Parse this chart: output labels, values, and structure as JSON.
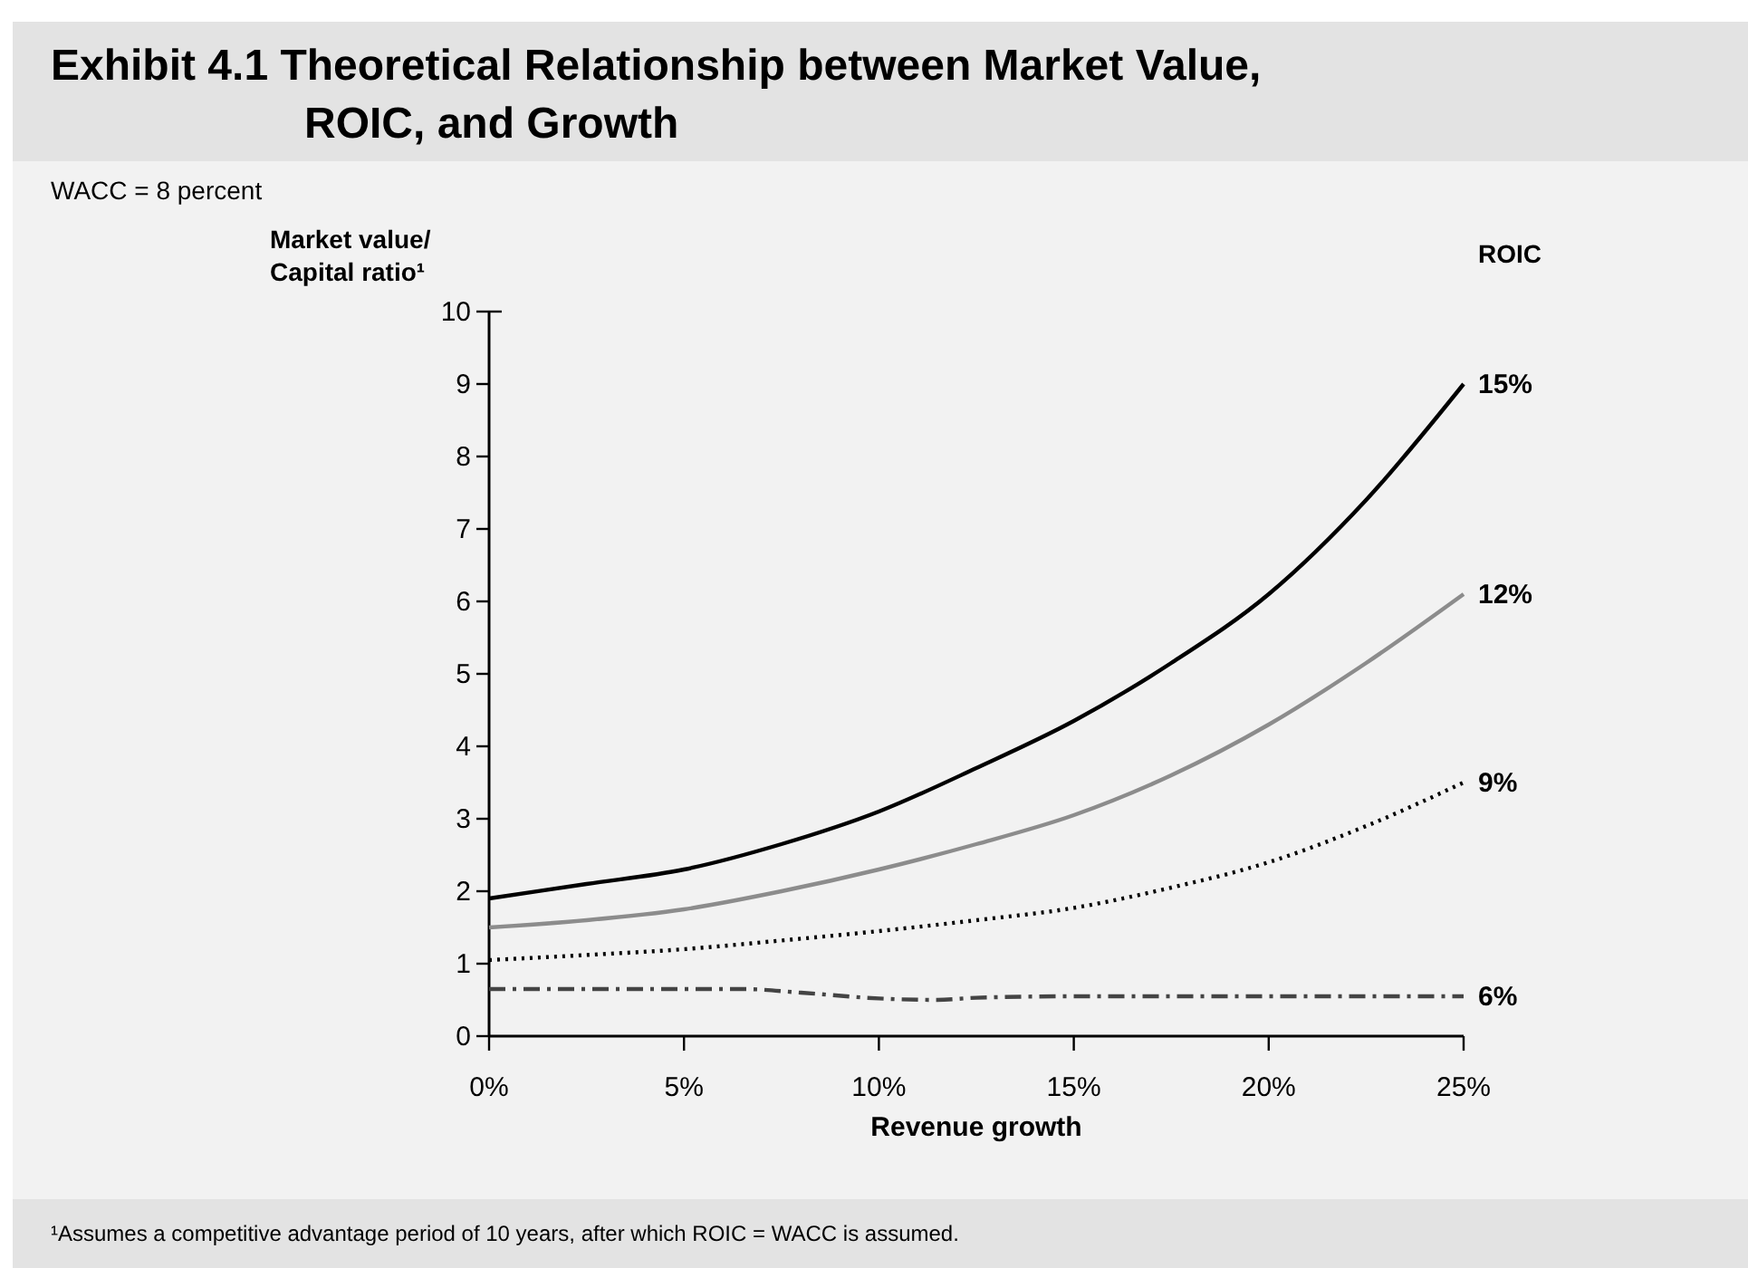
{
  "chart_data": {
    "type": "line",
    "title": "Exhibit 4.1 Theoretical Relationship between Market Value, ROIC, and Growth",
    "subtitle": "WACC = 8 percent",
    "xlabel": "Revenue growth",
    "ylabel": "Market value/ Capital ratio¹",
    "legend_title": "ROIC",
    "annotations": [
      "¹Assumes a competitive advantage period of 10 years, after which ROIC = WACC is assumed."
    ],
    "xlim": [
      0,
      25
    ],
    "xticks": [
      {
        "value": 0,
        "label": "0%"
      },
      {
        "value": 5,
        "label": "5%"
      },
      {
        "value": 10,
        "label": "10%"
      },
      {
        "value": 15,
        "label": "15%"
      },
      {
        "value": 20,
        "label": "20%"
      },
      {
        "value": 25,
        "label": "25%"
      }
    ],
    "ylim": [
      0,
      10
    ],
    "yticks": [
      0,
      1,
      2,
      3,
      4,
      5,
      6,
      7,
      8,
      9,
      10
    ],
    "grid": false,
    "series": [
      {
        "name": "15%",
        "color": "#000000",
        "line_style": "solid",
        "x": [
          0,
          2.5,
          5,
          7.5,
          10,
          12.5,
          15,
          17.5,
          20,
          22.5,
          25
        ],
        "values": [
          1.9,
          2.1,
          2.3,
          2.65,
          3.1,
          3.7,
          4.35,
          5.15,
          6.1,
          7.4,
          9.0
        ]
      },
      {
        "name": "12%",
        "color": "#8c8c8c",
        "line_style": "solid",
        "x": [
          0,
          2.5,
          5,
          7.5,
          10,
          12.5,
          15,
          17.5,
          20,
          22.5,
          25
        ],
        "values": [
          1.5,
          1.6,
          1.75,
          2.0,
          2.3,
          2.65,
          3.05,
          3.6,
          4.3,
          5.15,
          6.1
        ]
      },
      {
        "name": "9%",
        "color": "#000000",
        "line_style": "dotted",
        "x": [
          0,
          2.5,
          5,
          7.5,
          10,
          12.5,
          15,
          17.5,
          20,
          22.5,
          25
        ],
        "values": [
          1.05,
          1.12,
          1.2,
          1.32,
          1.45,
          1.6,
          1.77,
          2.05,
          2.4,
          2.9,
          3.5
        ]
      },
      {
        "name": "6%",
        "color": "#444444",
        "line_style": "dashdot",
        "x": [
          0,
          2.5,
          5,
          6.5,
          8,
          10,
          11.5,
          12.5,
          15,
          20,
          25
        ],
        "values": [
          0.65,
          0.65,
          0.65,
          0.65,
          0.6,
          0.52,
          0.5,
          0.53,
          0.55,
          0.55,
          0.55
        ]
      }
    ]
  }
}
